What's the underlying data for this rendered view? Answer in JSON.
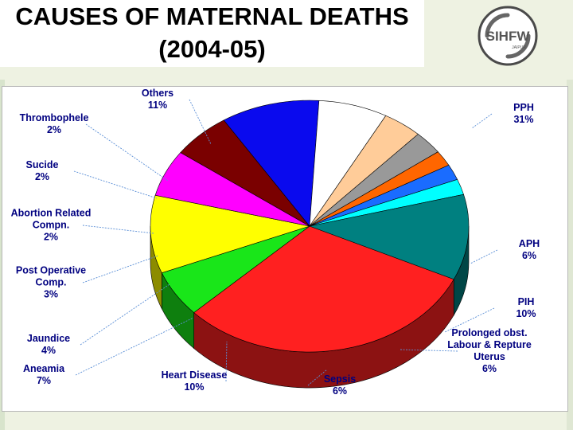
{
  "title": {
    "line1": "CAUSES OF MATERNAL DEATHS",
    "line2": "(2004-05)"
  },
  "logo": {
    "text": "SIHFW",
    "subtext": "JAIPUR"
  },
  "chart_data": {
    "type": "pie",
    "title": "CAUSES OF MATERNAL DEATHS (2004-05)",
    "three_d": true,
    "legend": "none",
    "slices": [
      {
        "label": "PPH",
        "value": 31,
        "value_label": "31%",
        "color": "#ff2020"
      },
      {
        "label": "APH",
        "value": 6,
        "value_label": "6%",
        "color": "#19e619"
      },
      {
        "label": "PIH",
        "value": 10,
        "value_label": "10%",
        "color": "#ffff00"
      },
      {
        "label": "Prolonged obst. Labour & Repture Uterus",
        "value": 6,
        "value_label": "6%",
        "color": "#ff00ff"
      },
      {
        "label": "Sepsis",
        "value": 6,
        "value_label": "6%",
        "color": "#7a0000"
      },
      {
        "label": "Heart Disease",
        "value": 10,
        "value_label": "10%",
        "color": "#0a0aee"
      },
      {
        "label": "Aneamia",
        "value": 7,
        "value_label": "7%",
        "color": "#ffffff"
      },
      {
        "label": "Jaundice",
        "value": 4,
        "value_label": "4%",
        "color": "#ffcc99"
      },
      {
        "label": "Post Operative Comp.",
        "value": 3,
        "value_label": "3%",
        "color": "#999999"
      },
      {
        "label": "Abortion Related Compn.",
        "value": 2,
        "value_label": "2%",
        "color": "#ff6600"
      },
      {
        "label": "Sucide",
        "value": 2,
        "value_label": "2%",
        "color": "#1a6cff"
      },
      {
        "label": "Thrombophele",
        "value": 2,
        "value_label": "2%",
        "color": "#00ffff"
      },
      {
        "label": "Others",
        "value": 11,
        "value_label": "11%",
        "color": "#008080"
      }
    ]
  }
}
